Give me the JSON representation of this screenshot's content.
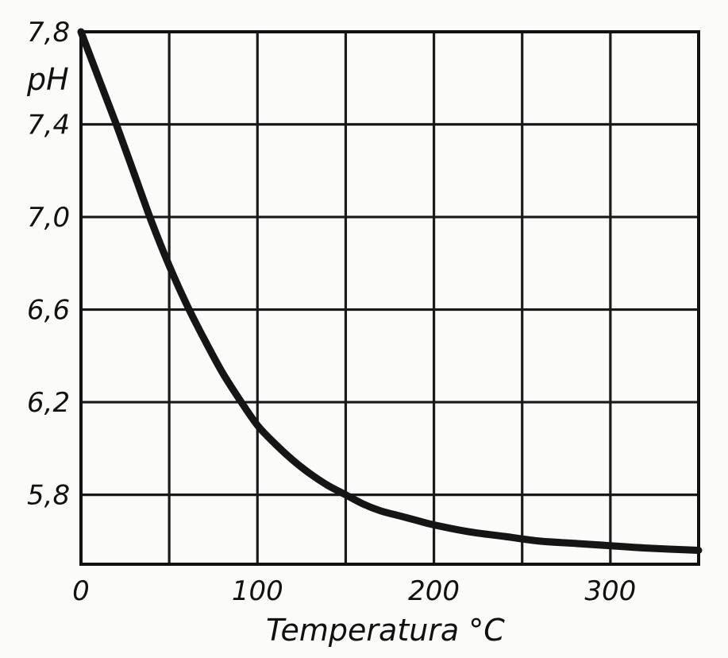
{
  "chart_data": {
    "type": "line",
    "title": "",
    "xlabel": "Temperatura  °C",
    "ylabel": "pH",
    "xlim": [
      0,
      350
    ],
    "ylim": [
      5.5,
      7.8
    ],
    "grid": true,
    "x_ticks": [
      0,
      50,
      100,
      150,
      200,
      250,
      300,
      350
    ],
    "y_ticks": [
      5.8,
      6.2,
      6.6,
      7.0,
      7.4,
      7.8
    ],
    "x_tick_labels": [
      {
        "value": 0,
        "label": "0"
      },
      {
        "value": 100,
        "label": "100"
      },
      {
        "value": 200,
        "label": "200"
      },
      {
        "value": 300,
        "label": "300"
      }
    ],
    "y_tick_labels": [
      {
        "value": 7.8,
        "label": "7,8"
      },
      {
        "value": 7.4,
        "label": "7,4"
      },
      {
        "value": 7.0,
        "label": "7,0"
      },
      {
        "value": 6.6,
        "label": "6,6"
      },
      {
        "value": 6.2,
        "label": "6,2"
      },
      {
        "value": 5.8,
        "label": "5,8"
      }
    ],
    "series": [
      {
        "x": [
          0,
          10,
          20,
          30,
          40,
          50,
          60,
          70,
          80,
          90,
          100,
          110,
          120,
          130,
          140,
          150,
          160,
          170,
          180,
          190,
          200,
          220,
          240,
          260,
          280,
          300,
          320,
          350
        ],
        "values": [
          7.8,
          7.6,
          7.4,
          7.19,
          6.98,
          6.79,
          6.62,
          6.47,
          6.33,
          6.21,
          6.1,
          6.02,
          5.95,
          5.89,
          5.84,
          5.8,
          5.76,
          5.73,
          5.71,
          5.69,
          5.67,
          5.64,
          5.62,
          5.6,
          5.59,
          5.58,
          5.57,
          5.56
        ]
      }
    ]
  }
}
